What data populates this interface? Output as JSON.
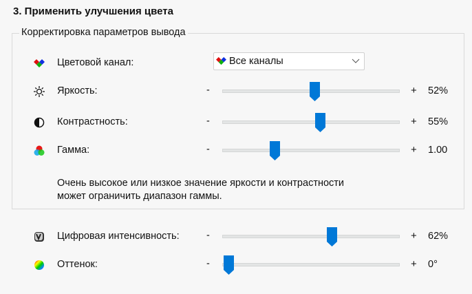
{
  "section_title": "3. Применить улучшения цвета",
  "group": {
    "legend": "Корректировка параметров вывода",
    "channel": {
      "label": "Цветовой канал:",
      "icon": "rgb-diamonds-icon",
      "value": "Все каналы"
    },
    "sliders": [
      {
        "id": "brightness",
        "label": "Яркость:",
        "icon": "sun-icon",
        "value_text": "52%",
        "fraction": 0.52
      },
      {
        "id": "contrast",
        "label": "Контрастность:",
        "icon": "contrast-icon",
        "value_text": "55%",
        "fraction": 0.55
      },
      {
        "id": "gamma",
        "label": "Гамма:",
        "icon": "rgb-circles-icon",
        "value_text": "1.00",
        "fraction": 0.28
      }
    ],
    "note_line1": "Очень высокое или низкое значение яркости и контрастности",
    "note_line2": "может ограничить диапазон гаммы."
  },
  "sliders": [
    {
      "id": "vibrance",
      "label": "Цифровая интенсивность:",
      "icon": "digital-vibrance-icon",
      "value_text": "62%",
      "fraction": 0.62
    },
    {
      "id": "hue",
      "label": "Оттенок:",
      "icon": "color-wheel-icon",
      "value_text": "0°",
      "fraction": 0.0
    }
  ],
  "minus": "-",
  "plus": "+",
  "colors": {
    "accent": "#0078d7",
    "track": "#e3e5e5"
  }
}
